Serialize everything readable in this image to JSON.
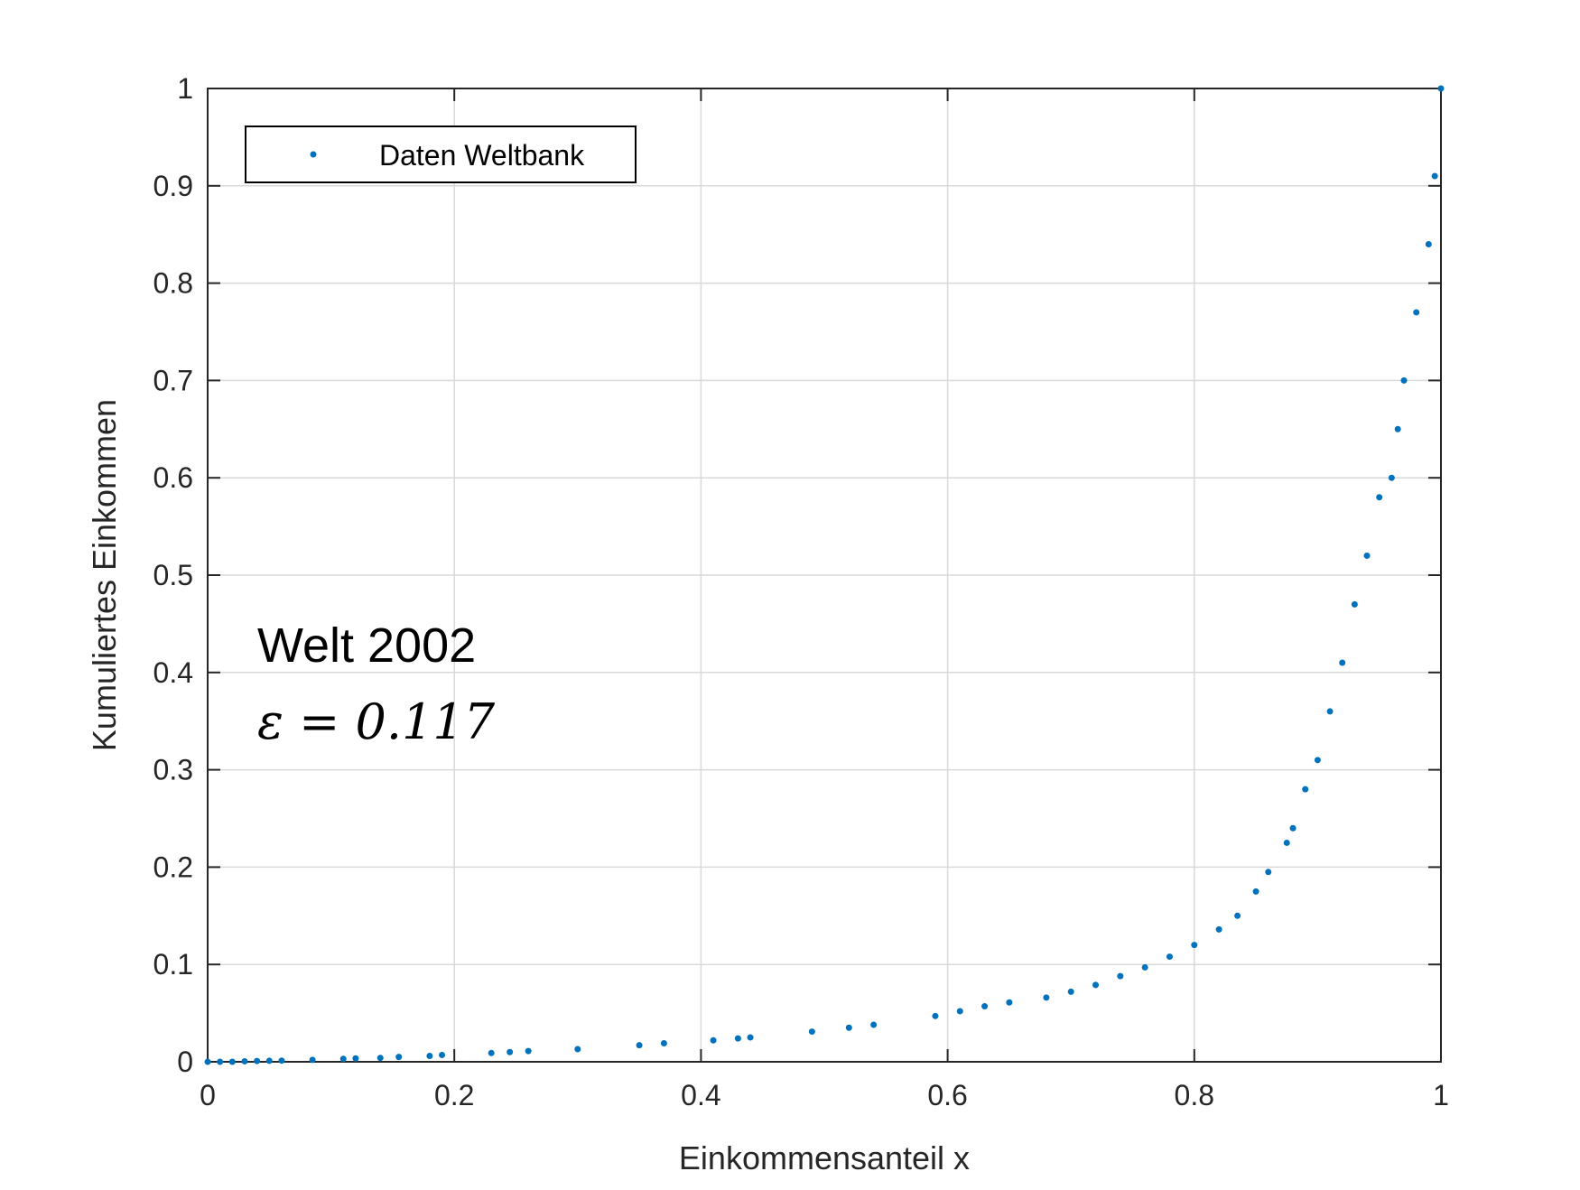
{
  "colors": {
    "series": "#0072BD",
    "axis": "#262626",
    "grid": "#d9d9d9",
    "background": "#ffffff"
  },
  "chart_data": {
    "type": "scatter",
    "title": "",
    "xlabel": "Einkommensanteil x",
    "ylabel": "Kumuliertes Einkommen",
    "xlim": [
      0,
      1
    ],
    "ylim": [
      0,
      1
    ],
    "xticks": [
      0,
      0.2,
      0.4,
      0.6,
      0.8,
      1
    ],
    "xtick_labels": [
      "0",
      "0.2",
      "0.4",
      "0.6",
      "0.8",
      "1"
    ],
    "yticks": [
      0,
      0.1,
      0.2,
      0.3,
      0.4,
      0.5,
      0.6,
      0.7,
      0.8,
      0.9,
      1
    ],
    "ytick_labels": [
      "0",
      "0.1",
      "0.2",
      "0.3",
      "0.4",
      "0.5",
      "0.6",
      "0.7",
      "0.8",
      "0.9",
      "1"
    ],
    "grid": true,
    "legend": {
      "entries": [
        "Daten Weltbank"
      ],
      "placement": "top-left"
    },
    "annotations": {
      "title": "Welt 2002",
      "formula": "ε = 0.117"
    },
    "series": [
      {
        "name": "Daten Weltbank",
        "x": [
          0,
          0.01,
          0.02,
          0.03,
          0.04,
          0.05,
          0.06,
          0.085,
          0.11,
          0.12,
          0.14,
          0.155,
          0.18,
          0.19,
          0.23,
          0.245,
          0.26,
          0.3,
          0.35,
          0.37,
          0.41,
          0.43,
          0.44,
          0.49,
          0.52,
          0.54,
          0.59,
          0.61,
          0.63,
          0.65,
          0.68,
          0.7,
          0.72,
          0.74,
          0.76,
          0.78,
          0.8,
          0.82,
          0.835,
          0.85,
          0.86,
          0.875,
          0.88,
          0.89,
          0.9,
          0.91,
          0.92,
          0.93,
          0.94,
          0.95,
          0.96,
          0.965,
          0.97,
          0.98,
          0.99,
          0.995,
          1.0
        ],
        "y": [
          0,
          0,
          0,
          0.0005,
          0.0008,
          0.001,
          0.0012,
          0.002,
          0.003,
          0.0035,
          0.004,
          0.005,
          0.006,
          0.007,
          0.009,
          0.01,
          0.011,
          0.013,
          0.017,
          0.019,
          0.022,
          0.024,
          0.025,
          0.031,
          0.035,
          0.038,
          0.047,
          0.052,
          0.057,
          0.061,
          0.066,
          0.072,
          0.079,
          0.088,
          0.097,
          0.108,
          0.12,
          0.136,
          0.15,
          0.175,
          0.195,
          0.225,
          0.24,
          0.28,
          0.31,
          0.36,
          0.41,
          0.47,
          0.52,
          0.58,
          0.6,
          0.65,
          0.7,
          0.77,
          0.84,
          0.91,
          1.0
        ]
      }
    ]
  }
}
